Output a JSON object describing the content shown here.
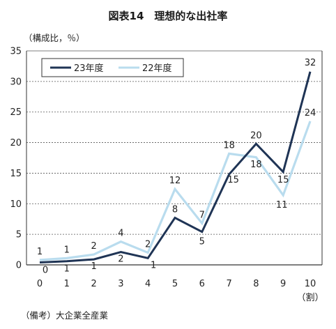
{
  "chart_data": {
    "type": "line",
    "title": "図表14　理想的な出社率",
    "ylabel": "（構成比，％）",
    "xlabel": "（割）",
    "note": "（備考）大企業全産業",
    "x": [
      0,
      1,
      2,
      3,
      4,
      5,
      6,
      7,
      8,
      9,
      10
    ],
    "xticks": [
      "0",
      "1",
      "2",
      "3",
      "4",
      "5",
      "6",
      "7",
      "8",
      "9",
      "10"
    ],
    "yticks": [
      "0",
      "5",
      "10",
      "15",
      "20",
      "25",
      "30",
      "35"
    ],
    "ylim": [
      0,
      35
    ],
    "grid": true,
    "legend_position": "top-left",
    "series": [
      {
        "name": "23年度",
        "color": "#1f3455",
        "values": [
          0.4,
          0.6,
          0.9,
          2.1,
          1.1,
          7.7,
          5.4,
          14.8,
          19.8,
          15.2,
          31.6
        ],
        "labels": [
          "0",
          "1",
          "1",
          "2",
          "1",
          "8",
          "5",
          "15",
          "20",
          "15",
          "32"
        ]
      },
      {
        "name": "22年度",
        "color": "#b9dcee",
        "values": [
          0.8,
          1.1,
          1.7,
          3.8,
          2.0,
          12.4,
          6.8,
          18.2,
          17.6,
          11.4,
          23.5
        ],
        "labels": [
          "1",
          "1",
          "2",
          "4",
          "2",
          "12",
          "7",
          "18",
          "18",
          "11",
          "24"
        ]
      }
    ]
  }
}
